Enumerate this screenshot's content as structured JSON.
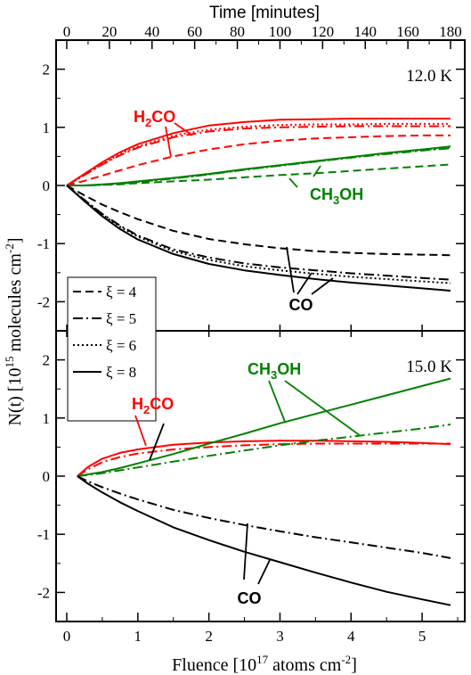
{
  "figure": {
    "top_axis_label": "Time [minutes]",
    "bottom_axis_label": "Fluence [10^17 atoms cm^-2]",
    "y_axis_label": "N(t) [10^15 molecules cm^-2]",
    "legend_symbol": "ξ = "
  },
  "colors": {
    "H2CO": "#ff0000",
    "CH3OH": "#008000",
    "CO": "#000000"
  },
  "chart_data": [
    {
      "type": "line",
      "panel": "top",
      "temperature_label": "12.0 K",
      "xlabel": "Fluence [10^17 atoms cm^-2]",
      "x2label": "Time [minutes]",
      "ylabel": "N(t) [10^15 molecules cm^-2]",
      "xlim": [
        -0.15,
        5.6
      ],
      "ylim": [
        -2.5,
        2.5
      ],
      "x_ticks": [
        0,
        1,
        2,
        3,
        4,
        5
      ],
      "time_ticks": [
        0,
        20,
        40,
        60,
        80,
        100,
        120,
        140,
        160,
        180
      ],
      "y_ticks": [
        -2,
        -1,
        0,
        1,
        2
      ],
      "legend": {
        "position": "bottom-left",
        "entries": [
          {
            "label": "ξ = 4",
            "style": "dashed"
          },
          {
            "label": "ξ = 5",
            "style": "dashdot"
          },
          {
            "label": "ξ = 6",
            "style": "dotted"
          },
          {
            "label": "ξ = 8",
            "style": "solid"
          }
        ]
      },
      "annotations": [
        {
          "species": "H2CO",
          "text": "H2CO"
        },
        {
          "species": "CH3OH",
          "text": "CH3OH"
        },
        {
          "species": "CO",
          "text": "CO"
        }
      ],
      "x": [
        0,
        0.25,
        0.5,
        0.75,
        1,
        1.5,
        2,
        2.5,
        3,
        3.5,
        4,
        4.5,
        5,
        5.4
      ],
      "series": [
        {
          "species": "H2CO",
          "style": "dashed",
          "values": [
            0,
            0.08,
            0.17,
            0.26,
            0.35,
            0.5,
            0.62,
            0.71,
            0.77,
            0.81,
            0.83,
            0.85,
            0.86,
            0.86
          ]
        },
        {
          "species": "H2CO",
          "style": "dashdot",
          "values": [
            0,
            0.18,
            0.36,
            0.52,
            0.65,
            0.83,
            0.93,
            0.98,
            1.0,
            1.01,
            1.02,
            1.02,
            1.02,
            1.02
          ]
        },
        {
          "species": "H2CO",
          "style": "dotted",
          "values": [
            0,
            0.18,
            0.37,
            0.54,
            0.67,
            0.86,
            0.96,
            1.01,
            1.04,
            1.05,
            1.05,
            1.06,
            1.06,
            1.06
          ]
        },
        {
          "species": "H2CO",
          "style": "solid",
          "values": [
            0,
            0.2,
            0.4,
            0.57,
            0.71,
            0.9,
            1.03,
            1.09,
            1.13,
            1.14,
            1.15,
            1.15,
            1.15,
            1.15
          ]
        },
        {
          "species": "CH3OH",
          "style": "dashed",
          "values": [
            0,
            0.0,
            0.01,
            0.02,
            0.04,
            0.07,
            0.1,
            0.14,
            0.18,
            0.21,
            0.25,
            0.29,
            0.33,
            0.36
          ]
        },
        {
          "species": "CH3OH",
          "style": "dashdot",
          "values": [
            0,
            0.0,
            0.01,
            0.03,
            0.06,
            0.12,
            0.19,
            0.27,
            0.34,
            0.41,
            0.48,
            0.54,
            0.6,
            0.64
          ]
        },
        {
          "species": "CH3OH",
          "style": "dotted",
          "values": [
            0,
            0.0,
            0.01,
            0.03,
            0.06,
            0.12,
            0.19,
            0.27,
            0.34,
            0.41,
            0.48,
            0.55,
            0.61,
            0.65
          ]
        },
        {
          "species": "CH3OH",
          "style": "solid",
          "values": [
            0,
            0.0,
            0.02,
            0.04,
            0.07,
            0.13,
            0.2,
            0.28,
            0.35,
            0.42,
            0.49,
            0.56,
            0.62,
            0.67
          ]
        },
        {
          "species": "CO",
          "style": "dashed",
          "values": [
            0,
            -0.17,
            -0.33,
            -0.46,
            -0.58,
            -0.78,
            -0.92,
            -1.01,
            -1.08,
            -1.13,
            -1.16,
            -1.18,
            -1.19,
            -1.2
          ]
        },
        {
          "species": "CO",
          "style": "dashdot",
          "values": [
            0,
            -0.25,
            -0.49,
            -0.69,
            -0.86,
            -1.1,
            -1.24,
            -1.34,
            -1.41,
            -1.46,
            -1.51,
            -1.55,
            -1.59,
            -1.62
          ]
        },
        {
          "species": "CO",
          "style": "dotted",
          "values": [
            0,
            -0.25,
            -0.5,
            -0.71,
            -0.88,
            -1.13,
            -1.28,
            -1.39,
            -1.46,
            -1.52,
            -1.57,
            -1.61,
            -1.65,
            -1.68
          ]
        },
        {
          "species": "CO",
          "style": "solid",
          "values": [
            0,
            -0.27,
            -0.53,
            -0.75,
            -0.93,
            -1.18,
            -1.35,
            -1.46,
            -1.54,
            -1.61,
            -1.67,
            -1.72,
            -1.77,
            -1.81
          ]
        }
      ]
    },
    {
      "type": "line",
      "panel": "bottom",
      "temperature_label": "15.0 K",
      "xlabel": "Fluence [10^17 atoms cm^-2]",
      "ylabel": "N(t) [10^15 molecules cm^-2]",
      "xlim": [
        -0.15,
        5.6
      ],
      "ylim": [
        -2.5,
        2.5
      ],
      "x_ticks": [
        0,
        1,
        2,
        3,
        4,
        5
      ],
      "y_ticks": [
        -2,
        -1,
        0,
        1,
        2
      ],
      "annotations": [
        {
          "species": "H2CO",
          "text": "H2CO"
        },
        {
          "species": "CH3OH",
          "text": "CH3OH"
        },
        {
          "species": "CO",
          "text": "CO"
        }
      ],
      "x": [
        0.15,
        0.3,
        0.5,
        0.75,
        1,
        1.5,
        2,
        2.5,
        3,
        3.5,
        4,
        4.5,
        5,
        5.4
      ],
      "series": [
        {
          "species": "H2CO",
          "style": "dashdot",
          "values": [
            0,
            0.12,
            0.24,
            0.33,
            0.39,
            0.46,
            0.5,
            0.53,
            0.55,
            0.56,
            0.56,
            0.56,
            0.56,
            0.56
          ]
        },
        {
          "species": "H2CO",
          "style": "solid",
          "values": [
            0,
            0.16,
            0.3,
            0.4,
            0.46,
            0.54,
            0.58,
            0.6,
            0.61,
            0.61,
            0.6,
            0.59,
            0.57,
            0.55
          ]
        },
        {
          "species": "CH3OH",
          "style": "dashdot",
          "values": [
            0,
            0.02,
            0.05,
            0.1,
            0.15,
            0.25,
            0.35,
            0.44,
            0.53,
            0.61,
            0.68,
            0.75,
            0.82,
            0.89
          ]
        },
        {
          "species": "CH3OH",
          "style": "solid",
          "values": [
            0,
            0.03,
            0.07,
            0.14,
            0.22,
            0.38,
            0.56,
            0.73,
            0.91,
            1.07,
            1.23,
            1.39,
            1.55,
            1.68
          ]
        },
        {
          "species": "CO",
          "style": "dashdot",
          "values": [
            0,
            -0.09,
            -0.19,
            -0.3,
            -0.4,
            -0.58,
            -0.72,
            -0.84,
            -0.95,
            -1.05,
            -1.14,
            -1.23,
            -1.32,
            -1.41
          ]
        },
        {
          "species": "CO",
          "style": "solid",
          "values": [
            0,
            -0.13,
            -0.28,
            -0.45,
            -0.6,
            -0.88,
            -1.1,
            -1.3,
            -1.48,
            -1.66,
            -1.83,
            -1.99,
            -2.12,
            -2.22
          ]
        }
      ]
    }
  ]
}
